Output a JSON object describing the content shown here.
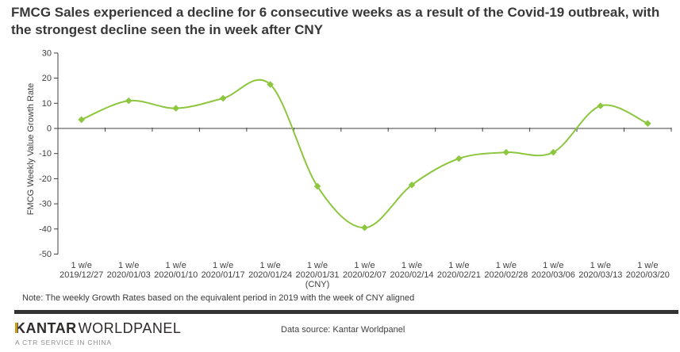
{
  "header": {
    "title": "FMCG Sales experienced a decline for 6 consecutive weeks as a result of the Covid-19 outbreak, with the strongest decline seen the in week after CNY"
  },
  "chart_data": {
    "type": "line",
    "title": "",
    "xlabel": "",
    "ylabel": "FMCG Weekly Value Growth Rate",
    "ylim": [
      -50,
      30
    ],
    "ytick_step": 10,
    "grid": false,
    "legend": "none",
    "smooth": true,
    "marker": "diamond",
    "line_color": "#8DC63F",
    "axis_color": "#404040",
    "category_prefix": "1 w/e",
    "categories": [
      "2019/12/27",
      "2020/01/03",
      "2020/01/10",
      "2020/01/17",
      "2020/01/24",
      "2020/01/31",
      "2020/02/07",
      "2020/02/14",
      "2020/02/21",
      "2020/02/28",
      "2020/03/06",
      "2020/03/13",
      "2020/03/20"
    ],
    "category_notes": [
      "",
      "",
      "",
      "",
      "",
      "(CNY)",
      "",
      "",
      "",
      "",
      "",
      "",
      ""
    ],
    "series": [
      {
        "name": "FMCG Weekly Value Growth Rate",
        "values": [
          3.5,
          11,
          8,
          12,
          17.5,
          -23,
          -39.5,
          -22.5,
          -12,
          -9.5,
          -9.5,
          9,
          2
        ]
      }
    ]
  },
  "note": {
    "text": "Note: The weekly Growth Rates based on the equivalent period in 2019 with the week of CNY aligned"
  },
  "footer": {
    "brand_primary": "KANTAR",
    "brand_secondary": "WORLDPANEL",
    "tagline": "A CTR SERVICE IN CHINA",
    "datasource": "Data source: Kantar Worldpanel",
    "accent_color": "#C89B18",
    "bar_color": "#333333"
  }
}
